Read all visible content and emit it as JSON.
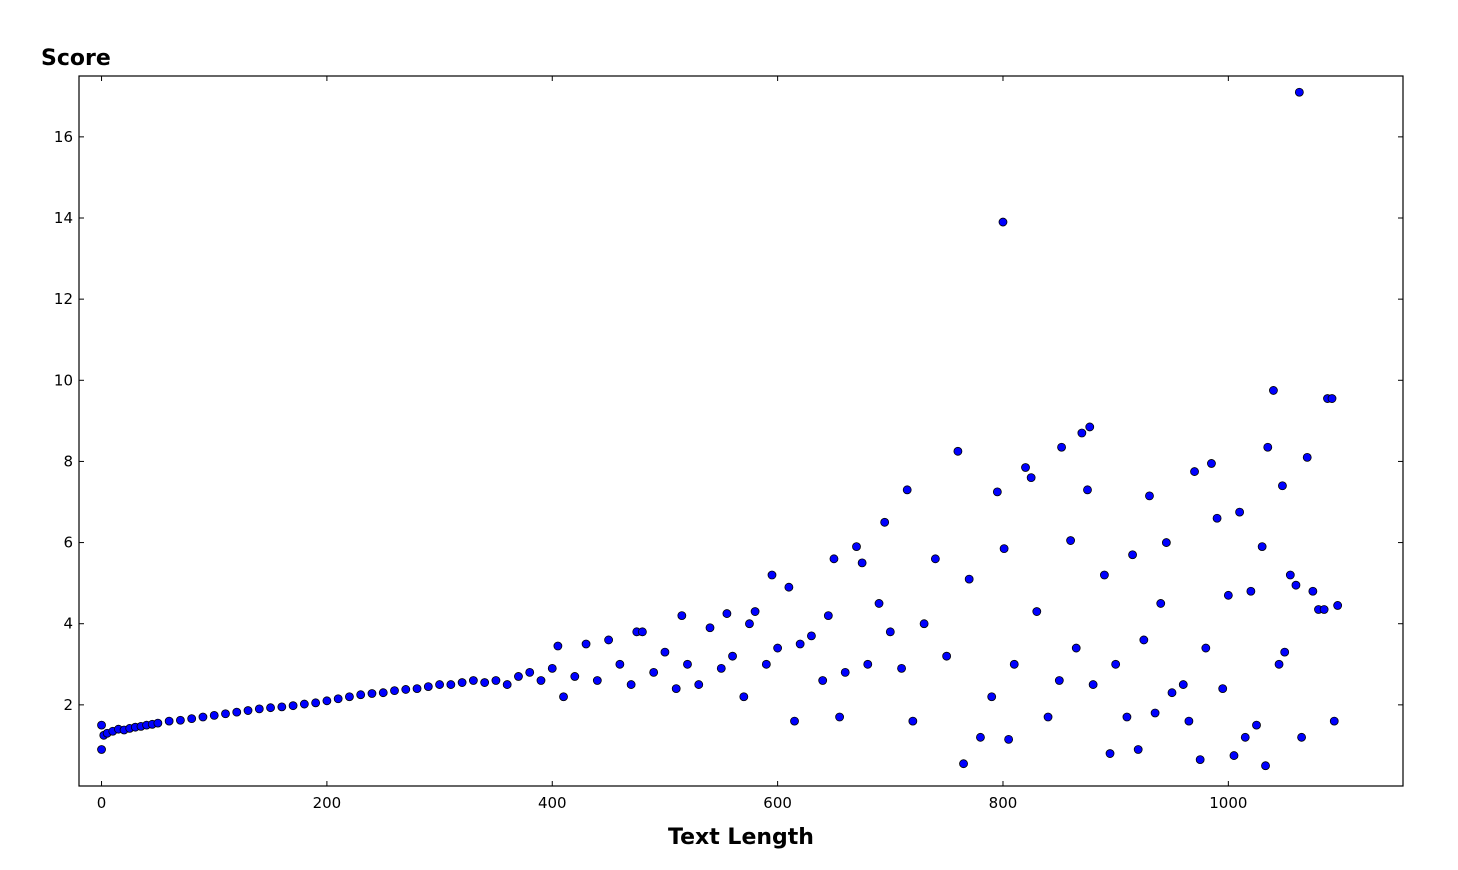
{
  "chart_data": {
    "type": "scatter",
    "ylabel": "Score",
    "xlabel": "Text Length",
    "xlim": [
      -20,
      1155
    ],
    "ylim": [
      0,
      17.5
    ],
    "x_ticks": [
      0,
      200,
      400,
      600,
      800,
      1000
    ],
    "y_ticks": [
      2,
      4,
      6,
      8,
      10,
      12,
      14,
      16
    ],
    "grid": false,
    "marker_color": "#0000ff",
    "marker_edge_color": "#000000",
    "points": [
      [
        0,
        0.9
      ],
      [
        0,
        1.5
      ],
      [
        2,
        1.25
      ],
      [
        5,
        1.3
      ],
      [
        10,
        1.35
      ],
      [
        15,
        1.4
      ],
      [
        20,
        1.38
      ],
      [
        25,
        1.42
      ],
      [
        30,
        1.45
      ],
      [
        35,
        1.47
      ],
      [
        40,
        1.5
      ],
      [
        45,
        1.52
      ],
      [
        50,
        1.55
      ],
      [
        60,
        1.6
      ],
      [
        70,
        1.62
      ],
      [
        80,
        1.66
      ],
      [
        90,
        1.7
      ],
      [
        100,
        1.74
      ],
      [
        110,
        1.78
      ],
      [
        120,
        1.82
      ],
      [
        130,
        1.86
      ],
      [
        140,
        1.9
      ],
      [
        150,
        1.93
      ],
      [
        160,
        1.95
      ],
      [
        170,
        1.98
      ],
      [
        180,
        2.02
      ],
      [
        190,
        2.05
      ],
      [
        200,
        2.1
      ],
      [
        210,
        2.15
      ],
      [
        220,
        2.2
      ],
      [
        230,
        2.25
      ],
      [
        240,
        2.28
      ],
      [
        250,
        2.3
      ],
      [
        260,
        2.35
      ],
      [
        270,
        2.38
      ],
      [
        280,
        2.4
      ],
      [
        290,
        2.45
      ],
      [
        300,
        2.5
      ],
      [
        310,
        2.5
      ],
      [
        320,
        2.55
      ],
      [
        330,
        2.6
      ],
      [
        340,
        2.55
      ],
      [
        350,
        2.6
      ],
      [
        360,
        2.5
      ],
      [
        370,
        2.7
      ],
      [
        380,
        2.8
      ],
      [
        390,
        2.6
      ],
      [
        400,
        2.9
      ],
      [
        405,
        3.45
      ],
      [
        410,
        2.2
      ],
      [
        420,
        2.7
      ],
      [
        430,
        3.5
      ],
      [
        440,
        2.6
      ],
      [
        450,
        3.6
      ],
      [
        460,
        3.0
      ],
      [
        470,
        2.5
      ],
      [
        475,
        3.8
      ],
      [
        480,
        3.8
      ],
      [
        490,
        2.8
      ],
      [
        500,
        3.3
      ],
      [
        510,
        2.4
      ],
      [
        515,
        4.2
      ],
      [
        520,
        3.0
      ],
      [
        530,
        2.5
      ],
      [
        540,
        3.9
      ],
      [
        550,
        2.9
      ],
      [
        555,
        4.25
      ],
      [
        560,
        3.2
      ],
      [
        570,
        2.2
      ],
      [
        575,
        4.0
      ],
      [
        580,
        4.3
      ],
      [
        590,
        3.0
      ],
      [
        595,
        5.2
      ],
      [
        600,
        3.4
      ],
      [
        610,
        4.9
      ],
      [
        615,
        1.6
      ],
      [
        620,
        3.5
      ],
      [
        630,
        3.7
      ],
      [
        640,
        2.6
      ],
      [
        645,
        4.2
      ],
      [
        650,
        5.6
      ],
      [
        655,
        1.7
      ],
      [
        660,
        2.8
      ],
      [
        670,
        5.9
      ],
      [
        675,
        5.5
      ],
      [
        680,
        3.0
      ],
      [
        690,
        4.5
      ],
      [
        695,
        6.5
      ],
      [
        700,
        3.8
      ],
      [
        710,
        2.9
      ],
      [
        715,
        7.3
      ],
      [
        720,
        1.6
      ],
      [
        730,
        4.0
      ],
      [
        740,
        5.6
      ],
      [
        750,
        3.2
      ],
      [
        760,
        8.25
      ],
      [
        765,
        0.55
      ],
      [
        770,
        5.1
      ],
      [
        780,
        1.2
      ],
      [
        790,
        2.2
      ],
      [
        795,
        7.25
      ],
      [
        800,
        13.9
      ],
      [
        801,
        5.85
      ],
      [
        805,
        1.15
      ],
      [
        810,
        3.0
      ],
      [
        820,
        7.85
      ],
      [
        825,
        7.6
      ],
      [
        830,
        4.3
      ],
      [
        840,
        1.7
      ],
      [
        850,
        2.6
      ],
      [
        852,
        8.35
      ],
      [
        860,
        6.05
      ],
      [
        865,
        3.4
      ],
      [
        870,
        8.7
      ],
      [
        875,
        7.3
      ],
      [
        877,
        8.85
      ],
      [
        880,
        2.5
      ],
      [
        890,
        5.2
      ],
      [
        895,
        0.8
      ],
      [
        900,
        3.0
      ],
      [
        910,
        1.7
      ],
      [
        915,
        5.7
      ],
      [
        920,
        0.9
      ],
      [
        925,
        3.6
      ],
      [
        930,
        7.15
      ],
      [
        935,
        1.8
      ],
      [
        940,
        4.5
      ],
      [
        945,
        6.0
      ],
      [
        950,
        2.3
      ],
      [
        960,
        2.5
      ],
      [
        965,
        1.6
      ],
      [
        970,
        7.75
      ],
      [
        975,
        0.65
      ],
      [
        980,
        3.4
      ],
      [
        985,
        7.95
      ],
      [
        990,
        6.6
      ],
      [
        995,
        2.4
      ],
      [
        1000,
        4.7
      ],
      [
        1005,
        0.75
      ],
      [
        1010,
        6.75
      ],
      [
        1015,
        1.2
      ],
      [
        1020,
        4.8
      ],
      [
        1025,
        1.5
      ],
      [
        1030,
        5.9
      ],
      [
        1033,
        0.5
      ],
      [
        1035,
        8.35
      ],
      [
        1040,
        9.75
      ],
      [
        1045,
        3.0
      ],
      [
        1048,
        7.4
      ],
      [
        1050,
        3.3
      ],
      [
        1055,
        5.2
      ],
      [
        1060,
        4.95
      ],
      [
        1063,
        17.1
      ],
      [
        1065,
        1.2
      ],
      [
        1070,
        8.1
      ],
      [
        1075,
        4.8
      ],
      [
        1080,
        4.35
      ],
      [
        1085,
        4.35
      ],
      [
        1088,
        9.55
      ],
      [
        1092,
        9.55
      ],
      [
        1094,
        1.6
      ],
      [
        1097,
        4.45
      ]
    ]
  }
}
